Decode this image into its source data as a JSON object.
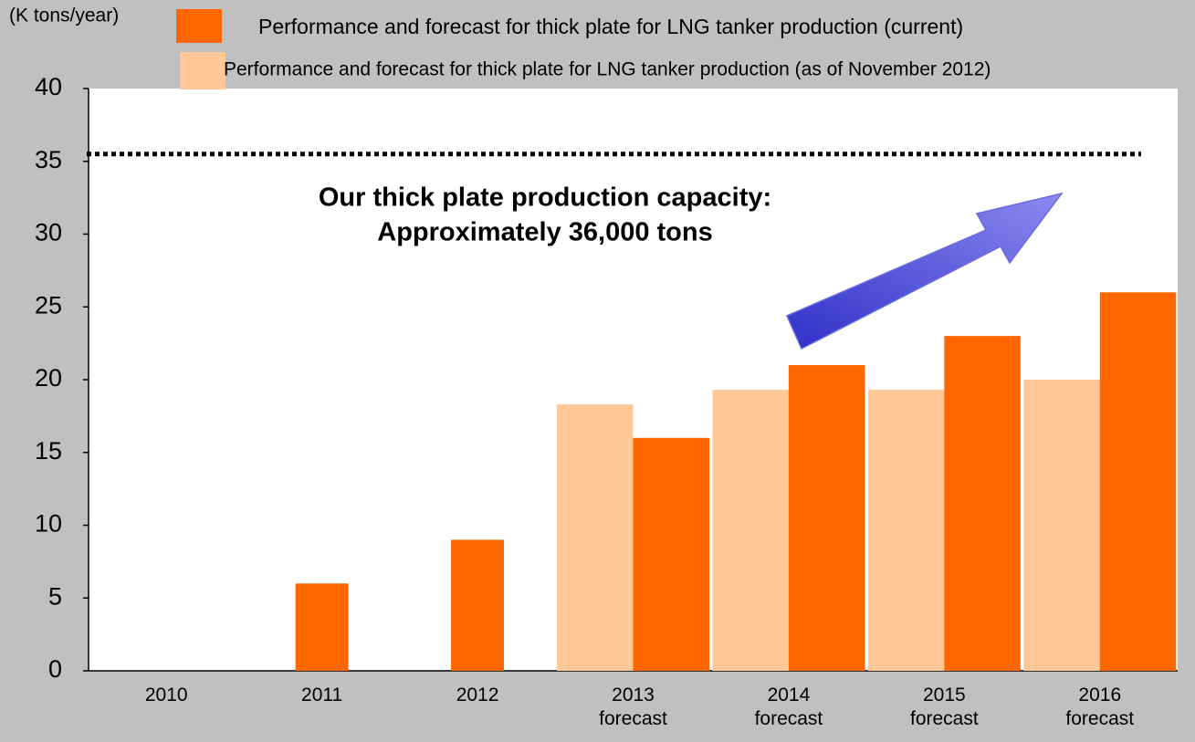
{
  "chart_data": {
    "type": "bar",
    "y_label": "(K tons/year)",
    "categories": [
      "2010",
      "2011",
      "2012",
      "2013\nforecast",
      "2014\nforecast",
      "2015\nforecast",
      "2016\nforecast"
    ],
    "series": [
      {
        "name": "Performance and forecast for thick plate for LNG tanker production (as of November 2012)",
        "color": "#ffc896",
        "values": [
          null,
          null,
          null,
          18.3,
          19.3,
          19.3,
          20
        ]
      },
      {
        "name": "Performance and forecast for thick plate for LNG tanker production (current)",
        "color": "#ff6600",
        "values": [
          null,
          6,
          9,
          16,
          21,
          23,
          26
        ]
      }
    ],
    "ylim": [
      0,
      40
    ],
    "yticks": [
      0,
      5,
      10,
      15,
      20,
      25,
      30,
      35,
      40
    ],
    "capacity_line": 35.5,
    "annotation": [
      "Our thick plate production capacity:",
      "Approximately 36,000 tons"
    ]
  }
}
